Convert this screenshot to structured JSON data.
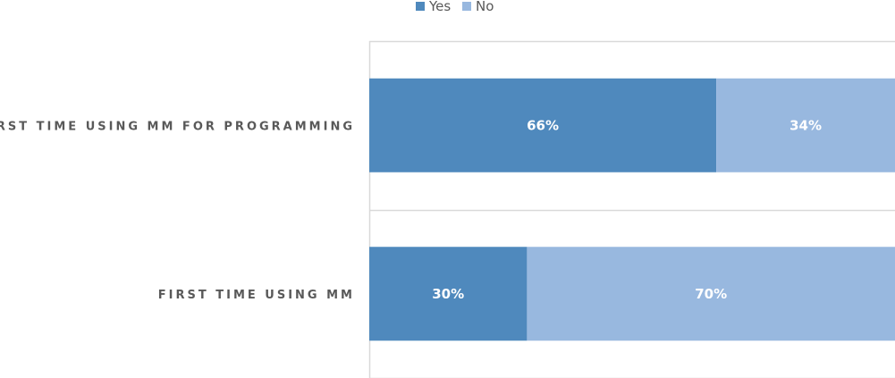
{
  "chart_data": {
    "type": "bar",
    "orientation": "horizontal",
    "stacked": true,
    "percent_stacked": true,
    "title": "",
    "xlabel": "",
    "ylabel": "",
    "categories": [
      "FIRST TIME USING MM FOR PROGRAMMING",
      "FIRST TIME USING MM"
    ],
    "series": [
      {
        "name": "Yes",
        "values": [
          66,
          30
        ],
        "labels": [
          "66%",
          "30%"
        ],
        "color": "#4f89bd"
      },
      {
        "name": "No",
        "values": [
          34,
          70
        ],
        "labels": [
          "34%",
          "70%"
        ],
        "color": "#98b8df"
      }
    ],
    "xlim": [
      0,
      100
    ],
    "grid": true,
    "legend": "top-center"
  }
}
